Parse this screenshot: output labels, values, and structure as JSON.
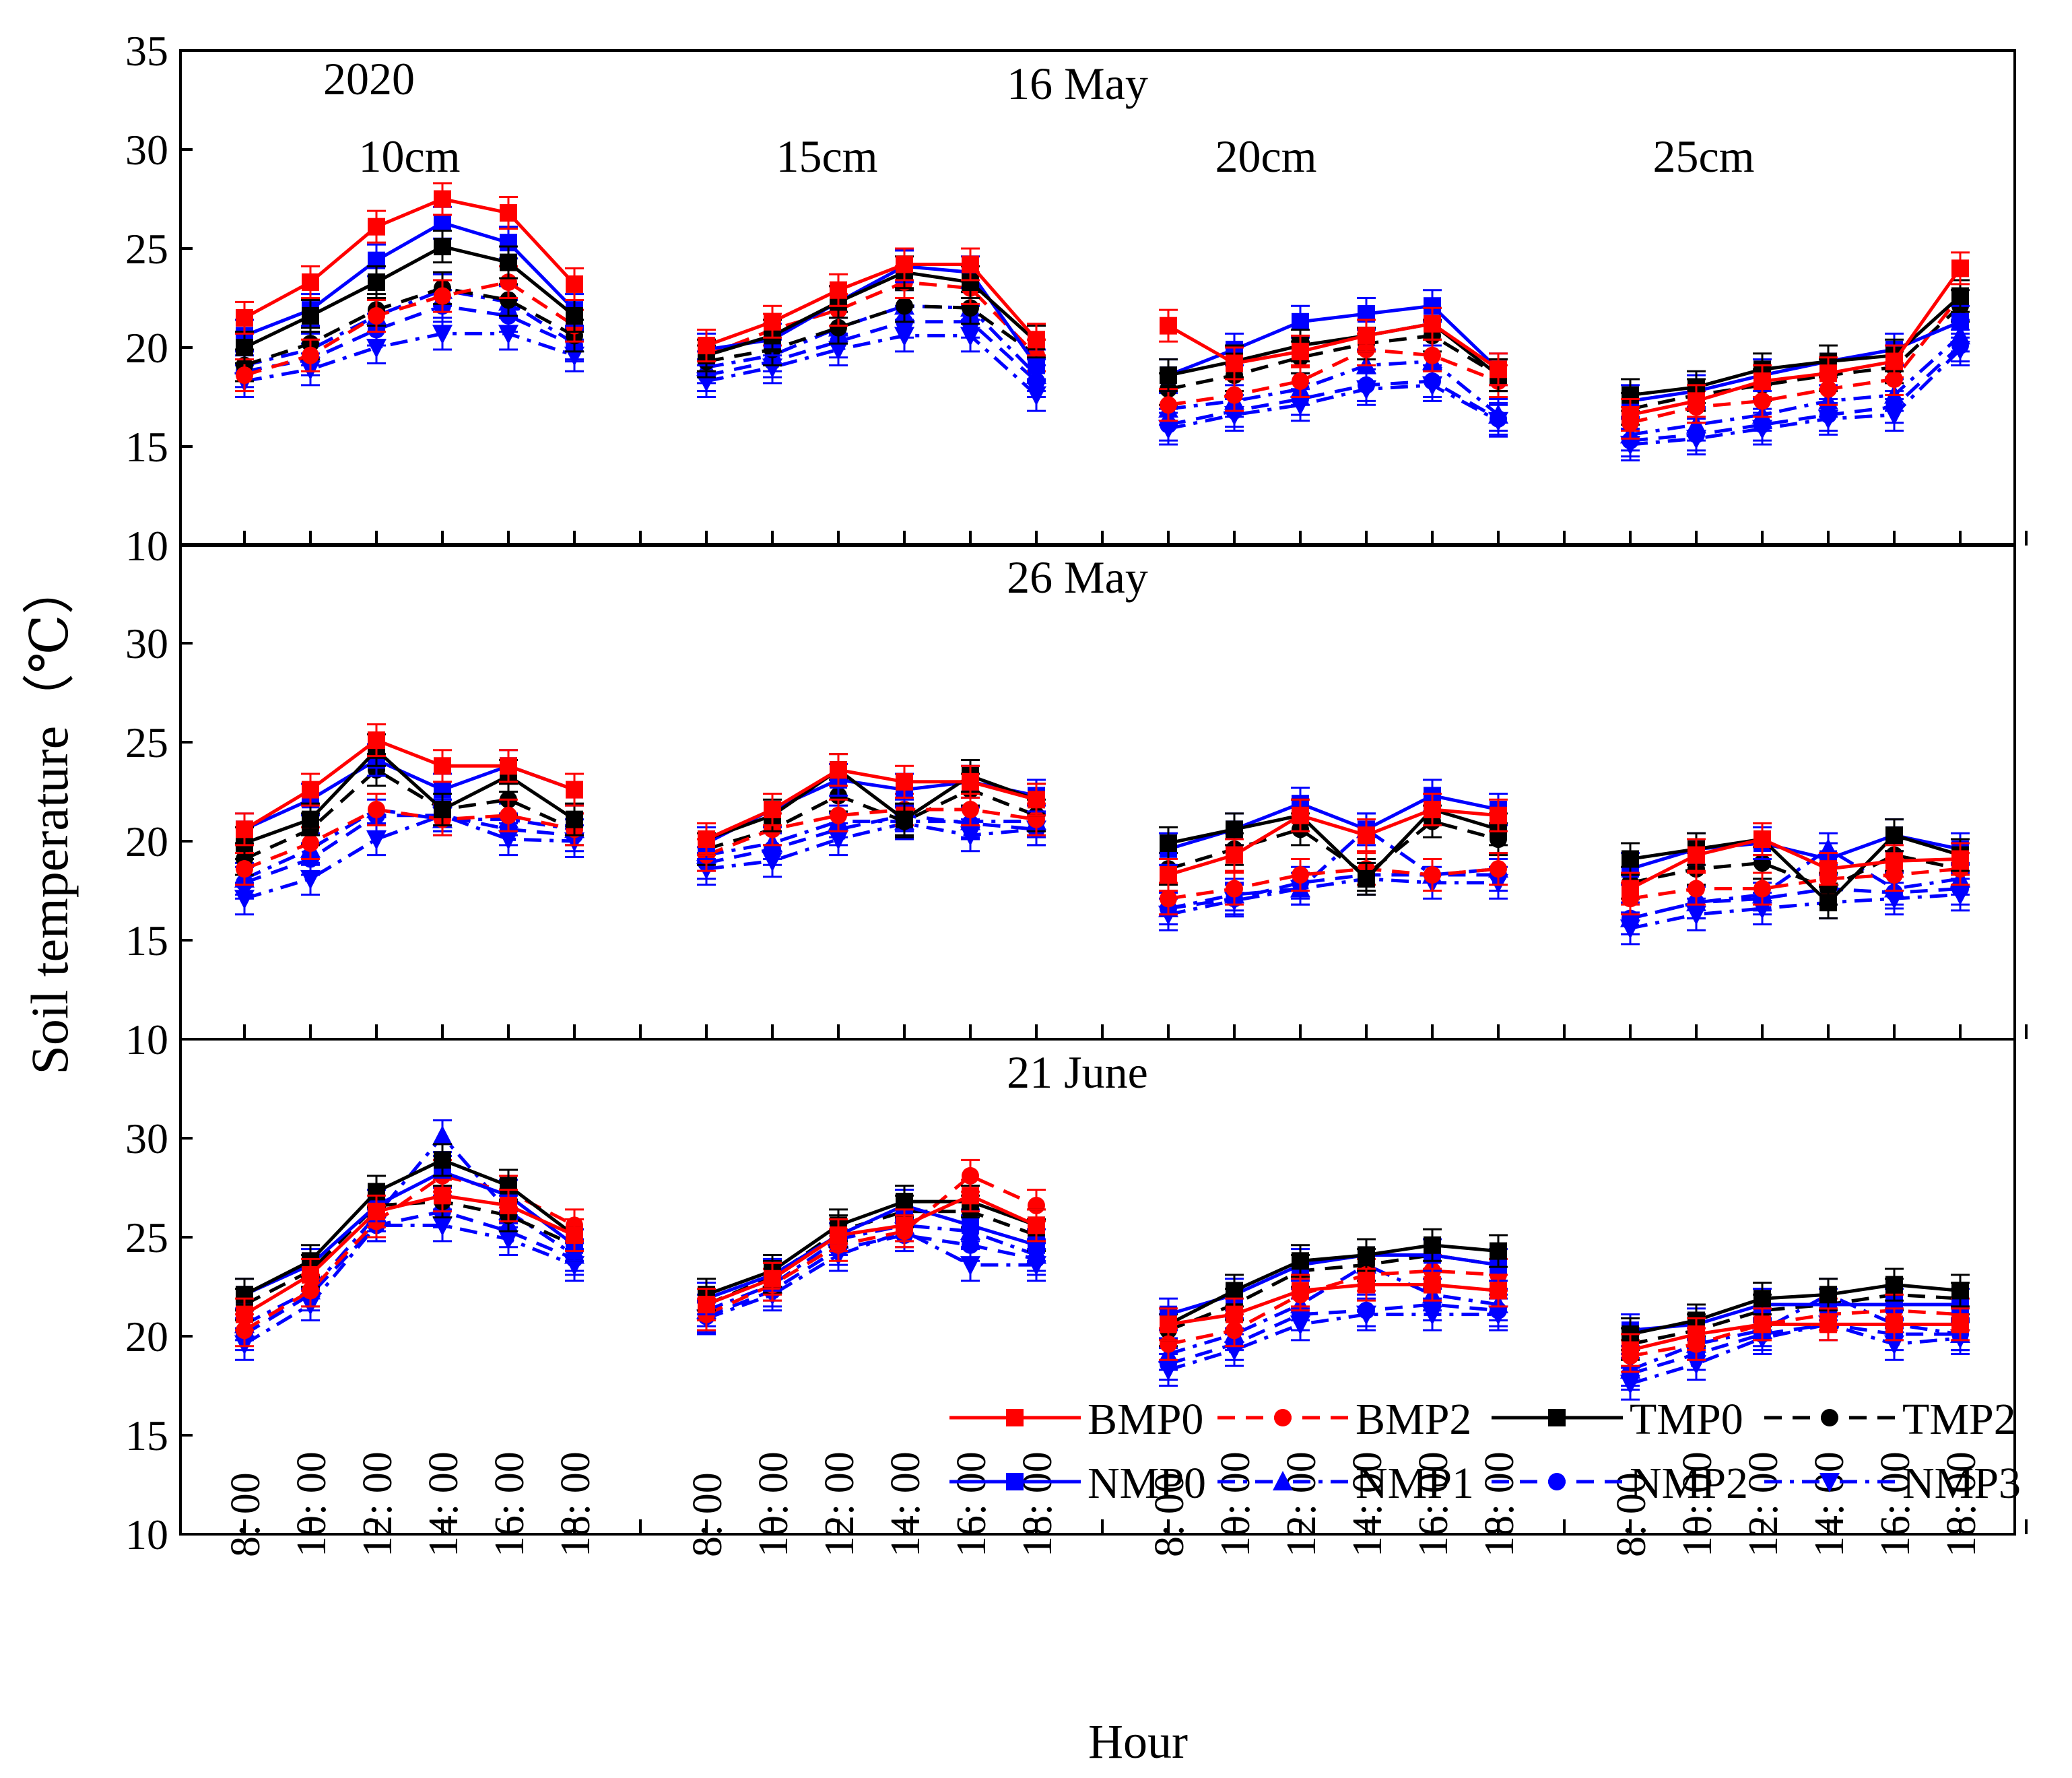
{
  "chart_data": {
    "type": "line",
    "year_label": "2020",
    "ylabel": "Soil temperature（℃）",
    "xlabel": "Hour",
    "hours": [
      "8: 00",
      "10: 00",
      "12: 00",
      "14: 00",
      "16: 00",
      "18: 00"
    ],
    "depths": [
      "10cm",
      "15cm",
      "20cm",
      "25cm"
    ],
    "ylim": [
      10,
      35
    ],
    "yticks": [
      10,
      15,
      20,
      25,
      30,
      35
    ],
    "legend": {
      "location": "lower-right of bottom panel",
      "entries": [
        "BMP0",
        "BMP2",
        "TMP0",
        "TMP2",
        "NMP0",
        "NMP1",
        "NMP2",
        "NMP3"
      ]
    },
    "series_styles": {
      "BMP0": {
        "color": "#ff0000",
        "dash": "solid",
        "marker": "square"
      },
      "BMP2": {
        "color": "#ff0000",
        "dash": "dashed",
        "marker": "circle"
      },
      "TMP0": {
        "color": "#000000",
        "dash": "solid",
        "marker": "square"
      },
      "TMP2": {
        "color": "#000000",
        "dash": "dashed",
        "marker": "circle"
      },
      "NMP0": {
        "color": "#0000ff",
        "dash": "solid",
        "marker": "square"
      },
      "NMP1": {
        "color": "#0000ff",
        "dash": "dotdash",
        "marker": "triangle-up"
      },
      "NMP2": {
        "color": "#0000ff",
        "dash": "dashed",
        "marker": "circle"
      },
      "NMP3": {
        "color": "#0000ff",
        "dash": "dotdash",
        "marker": "triangle-down"
      }
    },
    "panels": [
      {
        "date": "16 May",
        "ylim": [
          10,
          35
        ],
        "series": {
          "BMP0": [
            [
              21.5,
              23.3,
              26.1,
              27.5,
              26.8,
              23.2
            ],
            [
              20.1,
              21.3,
              22.9,
              24.2,
              24.2,
              20.4
            ],
            [
              21.1,
              19.2,
              19.8,
              20.6,
              21.2,
              18.9
            ],
            [
              16.6,
              17.3,
              18.3,
              18.7,
              19.3,
              24.0
            ]
          ],
          "BMP2": [
            [
              18.6,
              19.6,
              21.6,
              22.6,
              23.3,
              21.1
            ],
            [
              19.6,
              20.9,
              21.9,
              23.3,
              23.0,
              19.6
            ],
            [
              17.1,
              17.6,
              18.3,
              19.9,
              19.6,
              18.3
            ],
            [
              16.2,
              17.0,
              17.3,
              17.9,
              18.4,
              22.6
            ]
          ],
          "TMP0": [
            [
              20.0,
              21.6,
              23.3,
              25.1,
              24.3,
              21.6
            ],
            [
              19.6,
              20.6,
              22.3,
              23.8,
              23.3,
              20.3
            ],
            [
              18.6,
              19.3,
              20.1,
              20.6,
              21.2,
              18.6
            ],
            [
              17.6,
              18.0,
              18.9,
              19.3,
              19.6,
              22.6
            ]
          ],
          "TMP2": [
            [
              19.1,
              20.2,
              21.9,
              23.0,
              22.4,
              20.6
            ],
            [
              19.3,
              19.9,
              21.0,
              22.1,
              22.0,
              19.6
            ],
            [
              17.9,
              18.6,
              19.5,
              20.2,
              20.6,
              18.6
            ],
            [
              16.9,
              17.6,
              18.1,
              18.6,
              19.0,
              22.1
            ]
          ],
          "NMP0": [
            [
              20.6,
              21.9,
              24.4,
              26.3,
              25.3,
              21.9
            ],
            [
              19.9,
              20.4,
              22.3,
              24.1,
              23.8,
              19.1
            ],
            [
              18.6,
              19.9,
              21.3,
              21.7,
              22.1,
              18.9
            ],
            [
              17.3,
              17.8,
              18.6,
              19.3,
              19.9,
              21.3
            ]
          ],
          "NMP1": [
            [
              19.1,
              19.9,
              21.6,
              22.9,
              22.3,
              20.2
            ],
            [
              19.0,
              19.6,
              21.0,
              22.1,
              22.0,
              18.6
            ],
            [
              16.9,
              17.3,
              17.9,
              19.1,
              19.3,
              16.6
            ],
            [
              15.6,
              16.1,
              16.6,
              17.3,
              17.6,
              20.6
            ]
          ],
          "NMP2": [
            [
              18.8,
              19.4,
              20.9,
              22.1,
              21.6,
              20.1
            ],
            [
              18.6,
              19.3,
              20.3,
              21.3,
              21.3,
              18.3
            ],
            [
              16.1,
              16.8,
              17.4,
              18.1,
              18.3,
              16.4
            ],
            [
              15.3,
              15.6,
              16.1,
              16.6,
              17.0,
              20.1
            ]
          ],
          "NMP3": [
            [
              18.3,
              18.9,
              20.0,
              20.7,
              20.7,
              19.6
            ],
            [
              18.3,
              19.0,
              19.9,
              20.6,
              20.6,
              17.6
            ],
            [
              15.9,
              16.6,
              17.1,
              17.9,
              18.1,
              16.3
            ],
            [
              15.1,
              15.4,
              15.9,
              16.4,
              16.6,
              19.9
            ]
          ]
        }
      },
      {
        "date": "26 May",
        "ylim": [
          10,
          35
        ],
        "series": {
          "BMP0": [
            [
              20.6,
              22.6,
              25.1,
              23.8,
              23.8,
              22.6
            ],
            [
              20.1,
              21.6,
              23.6,
              23.0,
              23.0,
              22.1
            ],
            [
              18.3,
              19.3,
              21.3,
              20.3,
              21.6,
              21.3
            ],
            [
              17.6,
              19.3,
              20.1,
              18.6,
              19.0,
              19.1
            ]
          ],
          "BMP2": [
            [
              18.6,
              19.9,
              21.6,
              21.1,
              21.3,
              20.6
            ],
            [
              19.3,
              20.6,
              21.3,
              21.6,
              21.6,
              21.1
            ],
            [
              17.1,
              17.6,
              18.3,
              18.6,
              18.3,
              18.6
            ],
            [
              17.1,
              17.6,
              17.6,
              18.1,
              18.3,
              18.6
            ]
          ],
          "TMP0": [
            [
              19.9,
              21.1,
              24.6,
              21.6,
              23.3,
              21.1
            ],
            [
              20.1,
              21.3,
              23.6,
              21.1,
              23.3,
              22.1
            ],
            [
              19.9,
              20.6,
              21.3,
              18.1,
              21.6,
              20.6
            ],
            [
              19.1,
              19.6,
              20.1,
              16.9,
              20.3,
              19.3
            ]
          ],
          "TMP2": [
            [
              19.1,
              20.6,
              23.6,
              21.6,
              22.1,
              20.6
            ],
            [
              19.6,
              20.6,
              22.3,
              21.0,
              22.6,
              21.3
            ],
            [
              18.6,
              19.6,
              20.6,
              18.3,
              21.0,
              20.1
            ],
            [
              17.9,
              18.6,
              18.9,
              17.6,
              19.3,
              18.6
            ]
          ],
          "NMP0": [
            [
              20.6,
              22.1,
              24.1,
              22.6,
              23.8,
              22.6
            ],
            [
              19.9,
              21.6,
              23.1,
              22.6,
              23.0,
              22.3
            ],
            [
              19.6,
              20.6,
              21.9,
              20.6,
              22.3,
              21.6
            ],
            [
              18.6,
              19.6,
              19.9,
              19.1,
              20.3,
              19.6
            ]
          ],
          "NMP1": [
            [
              18.1,
              19.6,
              21.6,
              21.1,
              21.1,
              20.6
            ],
            [
              19.3,
              19.9,
              21.0,
              21.0,
              21.0,
              21.0
            ],
            [
              16.6,
              17.3,
              17.6,
              20.6,
              18.3,
              18.6
            ],
            [
              16.1,
              16.9,
              17.3,
              19.6,
              17.6,
              18.1
            ]
          ],
          "NMP2": [
            [
              17.9,
              19.1,
              21.3,
              21.3,
              20.6,
              20.3
            ],
            [
              18.9,
              19.6,
              20.6,
              21.3,
              20.9,
              20.6
            ],
            [
              16.6,
              17.1,
              17.9,
              18.3,
              18.3,
              18.3
            ],
            [
              16.1,
              16.9,
              17.1,
              17.6,
              17.4,
              17.6
            ]
          ],
          "NMP3": [
            [
              17.1,
              18.1,
              20.1,
              21.3,
              20.1,
              20.0
            ],
            [
              18.6,
              19.0,
              20.1,
              20.9,
              20.3,
              20.6
            ],
            [
              16.3,
              17.0,
              17.6,
              18.1,
              17.9,
              17.9
            ],
            [
              15.6,
              16.3,
              16.6,
              16.9,
              17.1,
              17.3
            ]
          ]
        }
      },
      {
        "date": "21 June",
        "ylim": [
          10,
          35
        ],
        "series": {
          "BMP0": [
            [
              21.1,
              23.1,
              26.3,
              27.1,
              26.6,
              25.1
            ],
            [
              21.6,
              22.9,
              25.1,
              25.6,
              27.1,
              25.6
            ],
            [
              20.6,
              21.1,
              22.3,
              22.6,
              22.6,
              22.3
            ],
            [
              19.3,
              20.1,
              20.6,
              20.6,
              20.6,
              20.6
            ]
          ],
          "BMP2": [
            [
              20.3,
              22.3,
              25.8,
              28.1,
              27.3,
              25.6
            ],
            [
              21.1,
              22.6,
              24.6,
              25.3,
              28.1,
              26.6
            ],
            [
              19.6,
              20.3,
              22.1,
              23.1,
              23.3,
              23.1
            ],
            [
              19.0,
              19.6,
              20.6,
              21.1,
              21.3,
              21.1
            ]
          ],
          "TMP0": [
            [
              22.1,
              23.8,
              27.3,
              28.9,
              27.6,
              25.1
            ],
            [
              22.1,
              23.3,
              25.6,
              26.8,
              26.8,
              25.6
            ],
            [
              20.6,
              22.3,
              23.8,
              24.1,
              24.6,
              24.3
            ],
            [
              20.1,
              20.8,
              21.9,
              22.1,
              22.6,
              22.3
            ]
          ],
          "TMP2": [
            [
              21.6,
              23.3,
              26.6,
              26.8,
              26.1,
              24.6
            ],
            [
              21.6,
              23.0,
              25.3,
              26.3,
              26.3,
              25.1
            ],
            [
              20.3,
              21.6,
              23.3,
              23.6,
              24.1,
              23.6
            ],
            [
              19.6,
              20.3,
              21.3,
              21.6,
              22.1,
              21.9
            ]
          ],
          "NMP0": [
            [
              22.1,
              23.6,
              26.6,
              28.3,
              27.1,
              24.6
            ],
            [
              21.9,
              23.1,
              25.1,
              26.6,
              25.6,
              24.6
            ],
            [
              21.1,
              22.1,
              23.6,
              24.1,
              24.1,
              23.6
            ],
            [
              20.3,
              20.6,
              21.6,
              21.6,
              21.6,
              21.6
            ]
          ],
          "NMP1": [
            [
              20.6,
              22.3,
              26.1,
              30.1,
              26.3,
              24.1
            ],
            [
              21.3,
              22.6,
              24.9,
              25.6,
              25.3,
              24.1
            ],
            [
              19.1,
              20.1,
              21.6,
              23.6,
              22.1,
              21.6
            ],
            [
              18.3,
              19.6,
              20.3,
              22.1,
              20.6,
              20.1
            ]
          ],
          "NMP2": [
            [
              20.1,
              22.1,
              25.6,
              26.3,
              25.3,
              23.9
            ],
            [
              21.0,
              22.3,
              24.4,
              25.1,
              24.6,
              23.9
            ],
            [
              18.6,
              19.6,
              21.1,
              21.3,
              21.6,
              21.3
            ],
            [
              18.1,
              19.1,
              20.1,
              20.6,
              20.1,
              20.1
            ]
          ],
          "NMP3": [
            [
              19.6,
              21.6,
              25.6,
              25.6,
              24.9,
              23.6
            ],
            [
              20.9,
              22.1,
              24.1,
              25.3,
              23.6,
              23.6
            ],
            [
              18.3,
              19.3,
              20.6,
              21.1,
              21.1,
              21.1
            ],
            [
              17.6,
              18.6,
              19.9,
              20.6,
              19.6,
              19.9
            ]
          ]
        }
      }
    ]
  }
}
